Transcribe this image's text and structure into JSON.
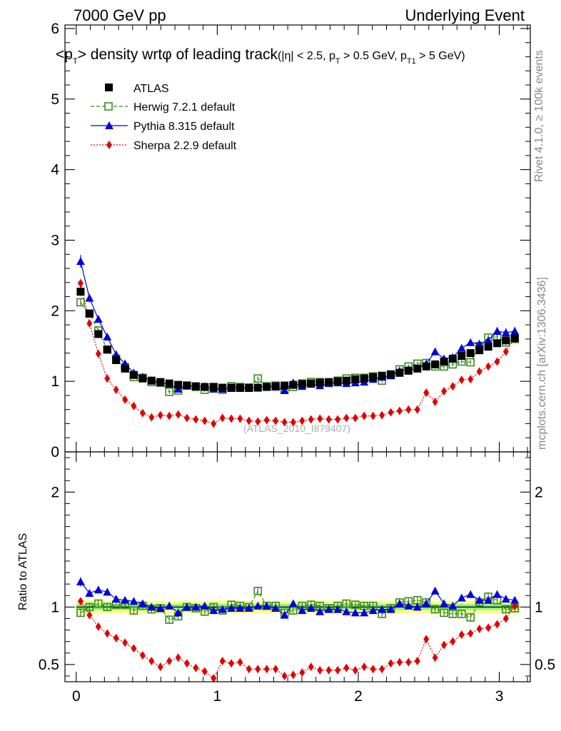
{
  "header": {
    "left": "7000 GeV pp",
    "right": "Underlying Event"
  },
  "side_labels": {
    "rivet": "Rivet 4.1.0, ≥ 100k events",
    "mcplots": "mcplots.cern.ch [arXiv:1306.3436]"
  },
  "colors": {
    "atlas": "#000000",
    "herwig": "#3a8a1e",
    "pythia": "#0000dd",
    "sherpa": "#e00000",
    "band_outer": "#ffff88",
    "band_inner": "#88ee88"
  },
  "chart_data": [
    {
      "type": "scatter",
      "panel": "main",
      "title_parts": {
        "a": "<p",
        "a_sub": "T",
        "b": "> density wrt",
        "phi": "φ",
        "c": " of leading track",
        "d": "(|η| < 2.5, p",
        "d_sub": "T",
        "e": " > 0.5 GeV, p",
        "e_sub": "T1",
        "f": " > 5 GeV)"
      },
      "watermark": "(ATLAS_2010_I879407)",
      "xlim": [
        -0.08,
        3.22
      ],
      "ylim": [
        0,
        6.05
      ],
      "yticks": [
        0,
        1,
        2,
        3,
        4,
        5,
        6
      ],
      "ytick_labels": [
        "0",
        "1",
        "2",
        "3",
        "4",
        "5",
        "6"
      ],
      "x": [
        0.031,
        0.094,
        0.157,
        0.22,
        0.283,
        0.346,
        0.408,
        0.471,
        0.534,
        0.597,
        0.66,
        0.723,
        0.785,
        0.848,
        0.911,
        0.974,
        1.037,
        1.1,
        1.162,
        1.225,
        1.288,
        1.351,
        1.414,
        1.477,
        1.539,
        1.602,
        1.665,
        1.728,
        1.791,
        1.854,
        1.916,
        1.979,
        2.042,
        2.105,
        2.168,
        2.231,
        2.293,
        2.356,
        2.419,
        2.482,
        2.545,
        2.608,
        2.67,
        2.733,
        2.796,
        2.859,
        2.922,
        2.985,
        3.047,
        3.11
      ],
      "series": [
        {
          "name": "ATLAS",
          "style": "data",
          "values": [
            2.27,
            1.96,
            1.67,
            1.45,
            1.3,
            1.18,
            1.09,
            1.04,
            1.01,
            0.99,
            0.97,
            0.95,
            0.94,
            0.93,
            0.92,
            0.92,
            0.91,
            0.91,
            0.91,
            0.91,
            0.91,
            0.92,
            0.93,
            0.94,
            0.95,
            0.96,
            0.97,
            0.98,
            0.99,
            1.0,
            1.01,
            1.03,
            1.04,
            1.06,
            1.08,
            1.1,
            1.12,
            1.15,
            1.18,
            1.21,
            1.24,
            1.28,
            1.32,
            1.36,
            1.4,
            1.44,
            1.49,
            1.54,
            1.58,
            1.61
          ],
          "errors": [
            0.06,
            0.04,
            0.03,
            0.03,
            0.02,
            0.02,
            0.02,
            0.02,
            0.02,
            0.02,
            0.02,
            0.02,
            0.02,
            0.02,
            0.02,
            0.02,
            0.02,
            0.02,
            0.02,
            0.02,
            0.02,
            0.02,
            0.02,
            0.02,
            0.02,
            0.02,
            0.02,
            0.02,
            0.02,
            0.02,
            0.02,
            0.02,
            0.02,
            0.02,
            0.02,
            0.02,
            0.02,
            0.02,
            0.02,
            0.02,
            0.02,
            0.03,
            0.03,
            0.03,
            0.03,
            0.03,
            0.03,
            0.03,
            0.04,
            0.04
          ]
        },
        {
          "name": "Herwig 7.2.1 default",
          "style": "herwig",
          "values": [
            2.12,
            1.96,
            1.72,
            1.45,
            1.32,
            1.2,
            1.06,
            1.05,
            0.99,
            0.98,
            0.85,
            0.87,
            0.94,
            0.92,
            0.88,
            0.92,
            0.88,
            0.93,
            0.92,
            0.91,
            1.04,
            0.93,
            0.94,
            0.89,
            0.92,
            0.97,
            0.99,
            0.99,
            0.98,
            1.01,
            1.04,
            1.05,
            1.05,
            1.07,
            1.01,
            1.09,
            1.17,
            1.21,
            1.25,
            1.26,
            1.21,
            1.21,
            1.24,
            1.28,
            1.27,
            1.5,
            1.62,
            1.63,
            1.55,
            1.6
          ],
          "errors": [
            0.05,
            0.04,
            0.03,
            0.03,
            0.03,
            0.03,
            0.03,
            0.03,
            0.03,
            0.03,
            0.03,
            0.03,
            0.03,
            0.03,
            0.03,
            0.03,
            0.03,
            0.03,
            0.03,
            0.03,
            0.03,
            0.03,
            0.03,
            0.03,
            0.03,
            0.03,
            0.03,
            0.03,
            0.03,
            0.03,
            0.03,
            0.03,
            0.03,
            0.03,
            0.03,
            0.03,
            0.03,
            0.03,
            0.03,
            0.03,
            0.03,
            0.03,
            0.03,
            0.03,
            0.03,
            0.03,
            0.04,
            0.04,
            0.04,
            0.04
          ]
        },
        {
          "name": "Pythia 8.315 default",
          "style": "pythia",
          "values": [
            2.7,
            2.18,
            1.88,
            1.63,
            1.38,
            1.25,
            1.12,
            1.06,
            1.01,
            0.98,
            0.96,
            0.89,
            0.94,
            0.93,
            0.93,
            0.89,
            0.89,
            0.9,
            0.9,
            0.9,
            0.92,
            0.93,
            0.92,
            0.87,
            0.98,
            0.93,
            0.96,
            0.94,
            0.97,
            0.98,
            0.97,
            0.98,
            0.99,
            1.03,
            1.06,
            1.08,
            1.15,
            1.16,
            1.18,
            1.25,
            1.42,
            1.32,
            1.34,
            1.47,
            1.55,
            1.53,
            1.58,
            1.71,
            1.69,
            1.71
          ],
          "errors": [
            0.09,
            0.06,
            0.05,
            0.04,
            0.04,
            0.03,
            0.03,
            0.03,
            0.03,
            0.03,
            0.03,
            0.03,
            0.03,
            0.03,
            0.03,
            0.03,
            0.03,
            0.03,
            0.03,
            0.03,
            0.03,
            0.03,
            0.03,
            0.03,
            0.03,
            0.03,
            0.03,
            0.03,
            0.03,
            0.03,
            0.03,
            0.03,
            0.03,
            0.03,
            0.03,
            0.03,
            0.04,
            0.04,
            0.04,
            0.04,
            0.05,
            0.05,
            0.05,
            0.05,
            0.05,
            0.05,
            0.05,
            0.06,
            0.06,
            0.06
          ]
        },
        {
          "name": "Sherpa 2.2.9 default",
          "style": "sherpa",
          "values": [
            2.39,
            1.82,
            1.39,
            1.04,
            0.88,
            0.74,
            0.65,
            0.55,
            0.49,
            0.52,
            0.51,
            0.53,
            0.48,
            0.46,
            0.44,
            0.4,
            0.48,
            0.47,
            0.47,
            0.44,
            0.43,
            0.45,
            0.44,
            0.42,
            0.42,
            0.44,
            0.46,
            0.47,
            0.46,
            0.46,
            0.48,
            0.48,
            0.51,
            0.51,
            0.52,
            0.56,
            0.58,
            0.6,
            0.6,
            0.84,
            0.71,
            0.86,
            0.93,
            1.02,
            1.03,
            1.14,
            1.21,
            1.28,
            1.42,
            1.62
          ],
          "errors": [
            0.06,
            0.04,
            0.03,
            0.03,
            0.03,
            0.02,
            0.02,
            0.02,
            0.02,
            0.02,
            0.02,
            0.02,
            0.02,
            0.02,
            0.02,
            0.02,
            0.02,
            0.02,
            0.02,
            0.02,
            0.02,
            0.02,
            0.02,
            0.02,
            0.02,
            0.02,
            0.02,
            0.02,
            0.02,
            0.02,
            0.02,
            0.02,
            0.02,
            0.02,
            0.02,
            0.02,
            0.02,
            0.02,
            0.02,
            0.03,
            0.03,
            0.03,
            0.03,
            0.03,
            0.03,
            0.04,
            0.04,
            0.04,
            0.04,
            0.05
          ]
        }
      ],
      "legend": [
        "ATLAS",
        "Herwig 7.2.1 default",
        "Pythia 8.315 default",
        "Sherpa 2.2.9 default"
      ],
      "legend_position": "top-left"
    },
    {
      "type": "scatter",
      "panel": "ratio",
      "ylabel": "Ratio to ATLAS",
      "xlim": [
        -0.08,
        3.22
      ],
      "ylim": [
        0.35,
        2.35
      ],
      "yticks": [
        0.5,
        1,
        2
      ],
      "ytick_labels": [
        "0.5",
        "1",
        "2"
      ],
      "xticks": [
        0,
        1,
        2,
        3
      ],
      "xtick_labels": [
        "0",
        "1",
        "2",
        "3"
      ],
      "reference_line": 1.0,
      "band_outer_halfwidth": 0.055,
      "band_inner_halfwidth": 0.025,
      "series": [
        {
          "name": "Herwig 7.2.1 default",
          "style": "herwig",
          "values": [
            0.95,
            1.0,
            1.03,
            1.0,
            1.02,
            1.02,
            0.97,
            1.01,
            0.98,
            0.99,
            0.89,
            0.92,
            1.0,
            0.99,
            0.96,
            1.0,
            0.97,
            1.02,
            1.01,
            1.0,
            1.14,
            1.01,
            1.01,
            0.95,
            0.97,
            1.01,
            1.02,
            1.01,
            0.99,
            1.01,
            1.03,
            1.02,
            1.01,
            1.01,
            0.94,
            0.99,
            1.04,
            1.05,
            1.06,
            1.04,
            0.98,
            0.95,
            0.94,
            0.94,
            0.91,
            1.04,
            1.09,
            1.06,
            0.98,
            0.99
          ],
          "errors": [
            0.03,
            0.03,
            0.03,
            0.03,
            0.03,
            0.03,
            0.03,
            0.03,
            0.03,
            0.03,
            0.03,
            0.03,
            0.03,
            0.03,
            0.03,
            0.03,
            0.03,
            0.03,
            0.03,
            0.03,
            0.03,
            0.03,
            0.03,
            0.03,
            0.03,
            0.03,
            0.03,
            0.03,
            0.03,
            0.03,
            0.03,
            0.03,
            0.03,
            0.03,
            0.03,
            0.03,
            0.03,
            0.03,
            0.03,
            0.03,
            0.03,
            0.03,
            0.03,
            0.03,
            0.03,
            0.03,
            0.03,
            0.03,
            0.03,
            0.03
          ]
        },
        {
          "name": "Pythia 8.315 default",
          "style": "pythia",
          "values": [
            1.22,
            1.12,
            1.15,
            1.13,
            1.07,
            1.06,
            1.05,
            1.03,
            1.0,
            0.99,
            1.01,
            0.95,
            1.0,
            1.0,
            1.01,
            0.97,
            0.98,
            0.99,
            0.99,
            0.99,
            1.01,
            1.01,
            0.99,
            0.93,
            1.03,
            0.97,
            0.99,
            0.96,
            0.98,
            0.98,
            0.96,
            0.95,
            0.95,
            0.97,
            0.98,
            0.98,
            1.03,
            1.01,
            1.0,
            1.03,
            1.14,
            1.03,
            1.01,
            1.08,
            1.11,
            1.06,
            1.06,
            1.11,
            1.07,
            1.06
          ],
          "errors": [
            0.04,
            0.03,
            0.03,
            0.03,
            0.03,
            0.03,
            0.03,
            0.03,
            0.03,
            0.03,
            0.03,
            0.03,
            0.03,
            0.03,
            0.03,
            0.03,
            0.03,
            0.03,
            0.03,
            0.03,
            0.03,
            0.03,
            0.03,
            0.03,
            0.03,
            0.03,
            0.03,
            0.03,
            0.03,
            0.03,
            0.03,
            0.03,
            0.03,
            0.03,
            0.03,
            0.03,
            0.03,
            0.03,
            0.03,
            0.03,
            0.03,
            0.03,
            0.03,
            0.03,
            0.03,
            0.03,
            0.03,
            0.03,
            0.03,
            0.03
          ]
        },
        {
          "name": "Sherpa 2.2.9 default",
          "style": "sherpa",
          "values": [
            1.05,
            0.93,
            0.83,
            0.77,
            0.73,
            0.69,
            0.64,
            0.58,
            0.53,
            0.48,
            0.53,
            0.56,
            0.51,
            0.47,
            0.44,
            0.38,
            0.53,
            0.51,
            0.52,
            0.46,
            0.46,
            0.46,
            0.46,
            0.4,
            0.41,
            0.43,
            0.48,
            0.45,
            0.45,
            0.45,
            0.47,
            0.45,
            0.48,
            0.46,
            0.46,
            0.51,
            0.52,
            0.52,
            0.53,
            0.72,
            0.56,
            0.67,
            0.7,
            0.76,
            0.77,
            0.81,
            0.82,
            0.85,
            0.9,
            1.01
          ],
          "errors": [
            0.03,
            0.03,
            0.03,
            0.03,
            0.03,
            0.03,
            0.03,
            0.03,
            0.03,
            0.03,
            0.03,
            0.03,
            0.03,
            0.03,
            0.03,
            0.03,
            0.03,
            0.03,
            0.03,
            0.03,
            0.03,
            0.03,
            0.03,
            0.03,
            0.03,
            0.03,
            0.03,
            0.03,
            0.03,
            0.03,
            0.03,
            0.03,
            0.03,
            0.03,
            0.03,
            0.03,
            0.03,
            0.03,
            0.03,
            0.03,
            0.03,
            0.03,
            0.03,
            0.03,
            0.03,
            0.03,
            0.03,
            0.03,
            0.03,
            0.03
          ]
        }
      ]
    }
  ]
}
